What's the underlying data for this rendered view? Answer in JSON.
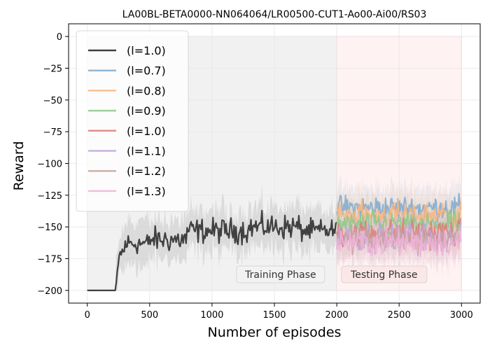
{
  "chart_data": {
    "type": "line",
    "title": "LA00BL-BETA0000-NN064064/LR00500-CUT1-Ao00-Ai00/RS03",
    "xlabel": "Number of episodes",
    "ylabel": "Reward",
    "xlim": [
      -150,
      3150
    ],
    "ylim": [
      -210,
      10
    ],
    "x_ticks": [
      0,
      500,
      1000,
      1500,
      2000,
      2500,
      3000
    ],
    "x_tick_labels": [
      "0",
      "500",
      "1000",
      "1500",
      "2000",
      "2500",
      "3000"
    ],
    "y_ticks": [
      0,
      -25,
      -50,
      -75,
      -100,
      -125,
      -150,
      -175,
      -200
    ],
    "y_tick_labels": [
      "0",
      "−25",
      "−50",
      "−75",
      "−100",
      "−125",
      "−150",
      "−175",
      "−200"
    ],
    "grid": true,
    "legend_position": "top-left",
    "phases": [
      {
        "label": "Training Phase",
        "x_start": 0,
        "x_end": 2000,
        "color": "#dddddd"
      },
      {
        "label": "Testing Phase",
        "x_start": 2000,
        "x_end": 3000,
        "color": "#fbd9d9"
      }
    ],
    "train_series": {
      "name": "(l=1.0)",
      "color": "#404040",
      "band_color": "#c8c8c8",
      "x_start": 0,
      "x_end": 2000,
      "segments": [
        {
          "x0": 0,
          "x1": 225,
          "level": -200,
          "noise": 0
        },
        {
          "x0": 225,
          "x1": 260,
          "level": -195,
          "noise": 0
        },
        {
          "x0": 260,
          "x1": 300,
          "level": -170,
          "noise": 7
        },
        {
          "x0": 300,
          "x1": 500,
          "level": -163,
          "noise": 8
        },
        {
          "x0": 500,
          "x1": 800,
          "level": -160,
          "noise": 9
        },
        {
          "x0": 800,
          "x1": 1300,
          "level": -153,
          "noise": 9
        },
        {
          "x0": 1300,
          "x1": 1700,
          "level": -150,
          "noise": 9
        },
        {
          "x0": 1700,
          "x1": 2000,
          "level": -153,
          "noise": 8
        }
      ],
      "band_halfwidth": 15
    },
    "test_series": [
      {
        "name": "(l=0.7)",
        "color": "#7fa9cf",
        "mean": -135,
        "noise": 8
      },
      {
        "name": "(l=0.8)",
        "color": "#f9b57c",
        "mean": -140,
        "noise": 8
      },
      {
        "name": "(l=0.9)",
        "color": "#8cc98a",
        "mean": -148,
        "noise": 8
      },
      {
        "name": "(l=1.0)",
        "color": "#e07a78",
        "mean": -155,
        "noise": 9
      },
      {
        "name": "(l=1.1)",
        "color": "#bfa6d8",
        "mean": -158,
        "noise": 9
      },
      {
        "name": "(l=1.2)",
        "color": "#c3a39a",
        "mean": -160,
        "noise": 9
      },
      {
        "name": "(l=1.3)",
        "color": "#f0b2d8",
        "mean": -162,
        "noise": 9
      }
    ],
    "legend": [
      "(l=1.0)",
      "(l=0.7)",
      "(l=0.8)",
      "(l=0.9)",
      "(l=1.0)",
      "(l=1.1)",
      "(l=1.2)",
      "(l=1.3)"
    ]
  }
}
